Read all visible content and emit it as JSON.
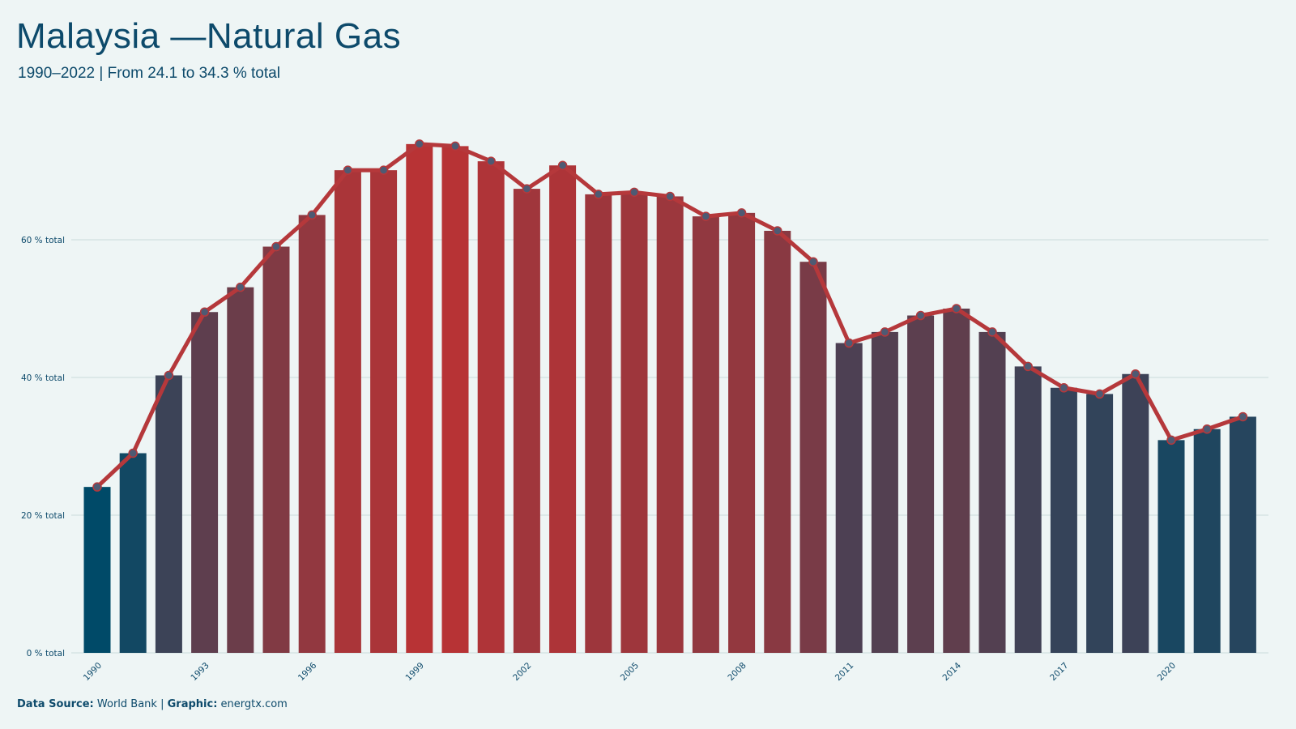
{
  "header": {
    "title": "Malaysia —Natural Gas",
    "subtitle": "1990–2022 | From 24.1 to 34.3 % total"
  },
  "footer": {
    "source_label": "Data Source:",
    "source_value": "World Bank",
    "separator": "|",
    "graphic_label": "Graphic:",
    "graphic_value": "energtx.com"
  },
  "colors": {
    "background": "#eef5f5",
    "line": "#b5383b",
    "marker_fill": "#4e5a73",
    "bar_low": "#004a68",
    "bar_high": "#b83335",
    "text": "#0d4a6b",
    "grid": "#c9dcdc"
  },
  "chart_data": {
    "type": "bar",
    "title": "Malaysia —Natural Gas",
    "subtitle": "1990–2022 | From 24.1 to 34.3 % total",
    "xlabel": "",
    "ylabel": "",
    "ylim": [
      0,
      78
    ],
    "y_ticks": [
      0,
      20,
      40,
      60
    ],
    "y_tick_labels": [
      "0 % total",
      "20 % total",
      "40 % total",
      "60 % total"
    ],
    "x_tick_labels": [
      "1990",
      "1993",
      "1996",
      "1999",
      "2002",
      "2005",
      "2008",
      "2011",
      "2014",
      "2017",
      "2020"
    ],
    "grid": true,
    "overlay": "line with markers",
    "categories": [
      1990,
      1991,
      1992,
      1993,
      1994,
      1995,
      1996,
      1997,
      1998,
      1999,
      2000,
      2001,
      2002,
      2003,
      2004,
      2005,
      2006,
      2007,
      2008,
      2009,
      2010,
      2011,
      2012,
      2013,
      2014,
      2015,
      2016,
      2017,
      2018,
      2019,
      2020,
      2021,
      2022
    ],
    "values": [
      24.1,
      29.0,
      40.3,
      49.5,
      53.1,
      59.0,
      63.6,
      70.1,
      70.1,
      73.9,
      73.6,
      71.4,
      67.4,
      70.8,
      66.6,
      66.9,
      66.3,
      63.4,
      63.9,
      61.3,
      56.8,
      45.0,
      46.6,
      49.0,
      50.0,
      46.6,
      41.6,
      38.5,
      37.6,
      40.5,
      30.9,
      32.5,
      34.3
    ]
  }
}
